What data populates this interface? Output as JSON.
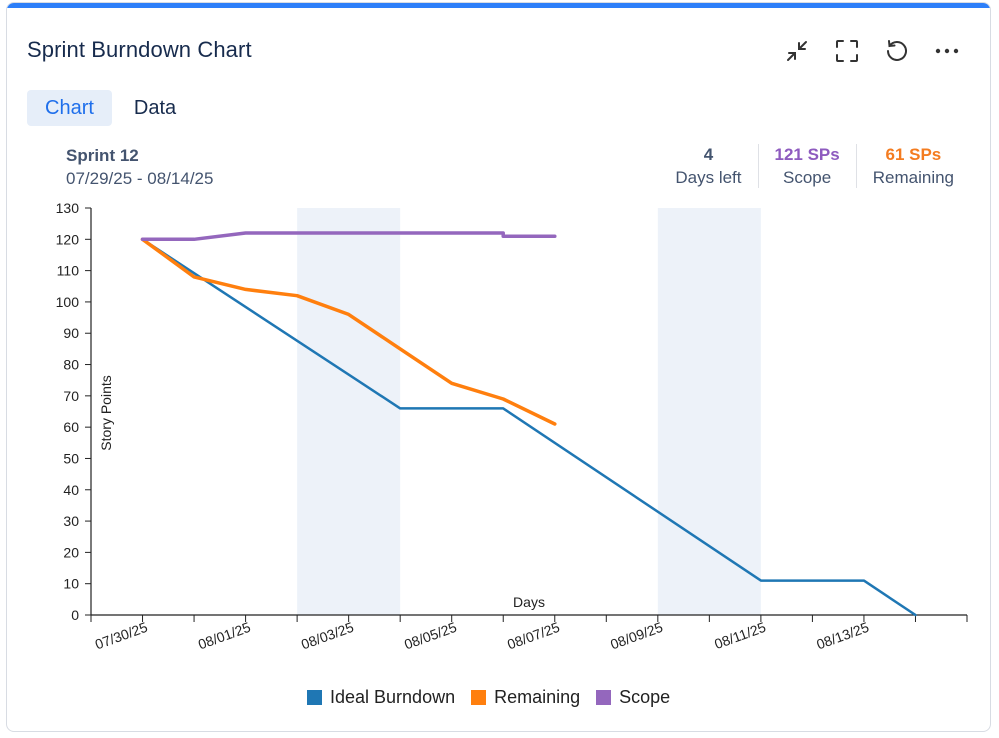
{
  "header": {
    "title": "Sprint Burndown Chart"
  },
  "actions": [
    {
      "name": "collapse-icon"
    },
    {
      "name": "fullscreen-icon"
    },
    {
      "name": "refresh-icon"
    },
    {
      "name": "more-options-icon"
    }
  ],
  "tabs": [
    {
      "label": "Chart",
      "active": true
    },
    {
      "label": "Data",
      "active": false
    }
  ],
  "sprint": {
    "name": "Sprint 12",
    "dates": "07/29/25 - 08/14/25"
  },
  "stats": [
    {
      "value": "4",
      "label": "Days left",
      "color": "#44546f"
    },
    {
      "value": "121 SPs",
      "label": "Scope",
      "color": "#8e5bbf"
    },
    {
      "value": "61 SPs",
      "label": "Remaining",
      "color": "#f47c20"
    }
  ],
  "colors": {
    "ideal": "#1f77b4",
    "remaining": "#ff7f0e",
    "scope": "#9467bd",
    "weekend": "#edf2f9",
    "accent": "#2d7ff9"
  },
  "chart_data": {
    "type": "line",
    "ylabel": "Story Points",
    "xlabel": "Days",
    "ylim": [
      0,
      130
    ],
    "yticks": [
      0,
      10,
      20,
      30,
      40,
      50,
      60,
      70,
      80,
      90,
      100,
      110,
      120,
      130
    ],
    "xlim": [
      "07/29/25",
      "08/15/25"
    ],
    "xticks": [
      "07/30/25",
      "08/01/25",
      "08/03/25",
      "08/05/25",
      "08/07/25",
      "08/09/25",
      "08/11/25",
      "08/13/25"
    ],
    "weekends": [
      [
        "08/02/25",
        "08/04/25"
      ],
      [
        "08/09/25",
        "08/11/25"
      ]
    ],
    "series": [
      {
        "name": "Ideal Burndown",
        "key": "ideal",
        "points": [
          [
            "07/30/25",
            120
          ],
          [
            "08/04/25",
            66
          ],
          [
            "08/06/25",
            66
          ],
          [
            "08/11/25",
            11
          ],
          [
            "08/13/25",
            11
          ],
          [
            "08/14/25",
            0
          ]
        ]
      },
      {
        "name": "Remaining",
        "key": "remaining",
        "points": [
          [
            "07/30/25",
            120
          ],
          [
            "07/31/25",
            108
          ],
          [
            "08/01/25",
            104
          ],
          [
            "08/02/25",
            102
          ],
          [
            "08/03/25",
            96
          ],
          [
            "08/04/25",
            85
          ],
          [
            "08/05/25",
            74
          ],
          [
            "08/06/25",
            69
          ],
          [
            "08/07/25",
            61
          ]
        ]
      },
      {
        "name": "Scope",
        "key": "scope",
        "points": [
          [
            "07/30/25",
            120
          ],
          [
            "07/31/25",
            120
          ],
          [
            "08/01/25",
            122
          ],
          [
            "08/06/25",
            122
          ],
          [
            "08/06/25",
            121
          ],
          [
            "08/07/25",
            121
          ]
        ]
      }
    ]
  },
  "legend": [
    {
      "label": "Ideal Burndown",
      "key": "ideal"
    },
    {
      "label": "Remaining",
      "key": "remaining"
    },
    {
      "label": "Scope",
      "key": "scope"
    }
  ]
}
